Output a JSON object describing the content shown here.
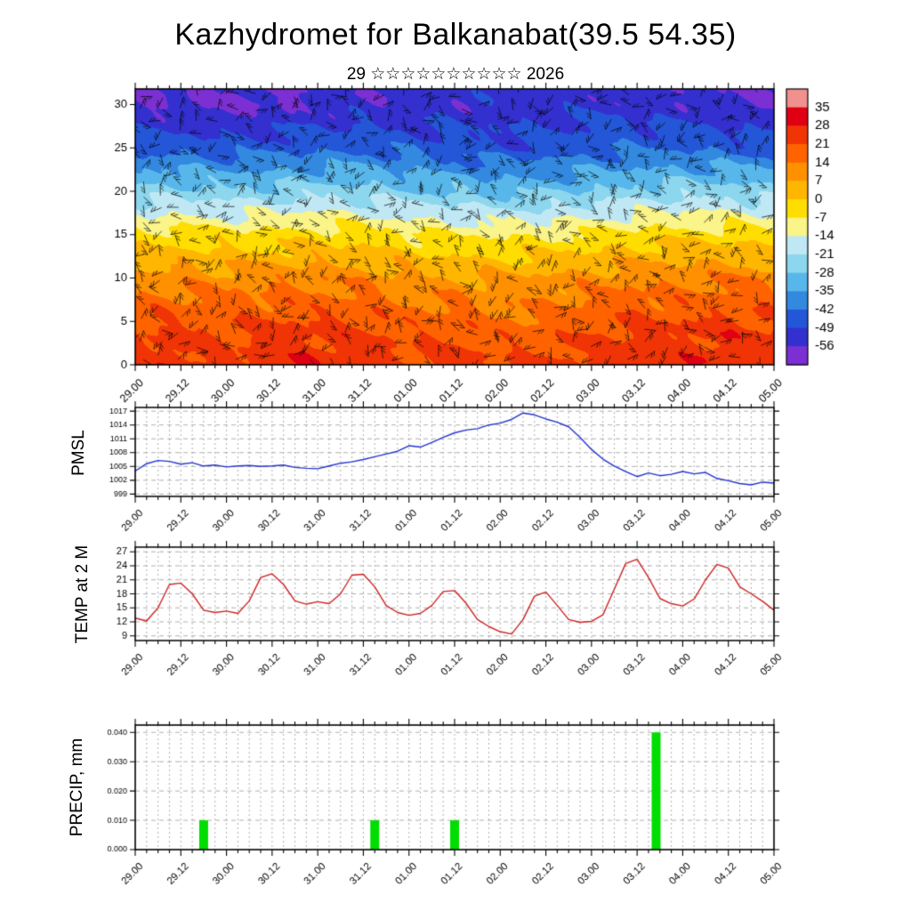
{
  "header": {
    "title": "Kazhydromet for Balkanabat(39.5 54.35)",
    "subtitle": "29 ☆☆☆☆☆☆☆☆☆☆ 2026"
  },
  "x_axis": {
    "tick_labels": [
      "29.00",
      "29.12",
      "30.00",
      "30.12",
      "31.00",
      "31.12",
      "01.00",
      "01.12",
      "02.00",
      "02.12",
      "03.00",
      "03.12",
      "04.00",
      "04.12",
      "05.00"
    ],
    "hours_span": 168,
    "minor_step_hours": 3,
    "major_step_hours": 12
  },
  "chart_data": [
    {
      "type": "heatmap",
      "name": "upper-air temperature time-height section with wind barbs",
      "overlay": "wind-barbs",
      "y_ticks": [
        0,
        5,
        10,
        15,
        20,
        25,
        30
      ],
      "y_max": 31.8,
      "time_step_hours": 12,
      "levels": [
        0,
        5,
        10,
        15,
        20,
        25,
        30
      ],
      "values_by_time": [
        [
          24,
          20,
          10,
          -5,
          -26,
          -45,
          -56
        ],
        [
          26,
          21,
          11,
          -4,
          -25,
          -44,
          -56
        ],
        [
          22,
          19,
          10,
          -5,
          -26,
          -46,
          -57
        ],
        [
          25,
          21,
          12,
          -4,
          -25,
          -45,
          -57
        ],
        [
          26,
          22,
          12,
          -3,
          -24,
          -44,
          -55
        ],
        [
          25,
          21,
          11,
          -4,
          -25,
          -43,
          -54
        ],
        [
          22,
          18,
          9,
          -6,
          -27,
          -45,
          -54
        ],
        [
          23,
          18,
          8,
          -7,
          -28,
          -46,
          -53
        ],
        [
          21,
          16,
          7,
          -8,
          -30,
          -47,
          -52
        ],
        [
          22,
          17,
          8,
          -8,
          -29,
          -46,
          -52
        ],
        [
          24,
          19,
          10,
          -6,
          -27,
          -44,
          -52
        ],
        [
          27,
          22,
          12,
          -4,
          -25,
          -43,
          -53
        ],
        [
          25,
          21,
          12,
          -3,
          -24,
          -43,
          -54
        ],
        [
          27,
          23,
          13,
          -3,
          -24,
          -44,
          -55
        ],
        [
          24,
          21,
          12,
          -4,
          -25,
          -45,
          -56
        ]
      ],
      "colorbar_ticks": [
        35,
        28,
        21,
        14,
        7,
        0,
        -7,
        -14,
        -21,
        -28,
        -35,
        -42,
        -49,
        -56
      ],
      "colorbar_colors": [
        "#f0908f",
        "#e00013",
        "#f03406",
        "#fe6300",
        "#ff9000",
        "#ffb600",
        "#ffdd00",
        "#faf489",
        "#bfe8f4",
        "#8cd6ee",
        "#58b7ea",
        "#3388e0",
        "#2456d8",
        "#3330cf",
        "#7c2fd2"
      ]
    },
    {
      "type": "line",
      "name": "PMSL",
      "color": "#2233cc",
      "y_ticks": [
        999,
        1002,
        1005,
        1008,
        1011,
        1014,
        1017
      ],
      "ylim": [
        998.5,
        1017.8
      ],
      "step_hours": 3,
      "values": [
        1004.0,
        1005.6,
        1006.3,
        1006.1,
        1005.5,
        1005.8,
        1005.1,
        1005.3,
        1004.9,
        1005.1,
        1005.2,
        1005.0,
        1005.1,
        1005.3,
        1004.8,
        1004.6,
        1004.5,
        1005.1,
        1005.7,
        1006.0,
        1006.5,
        1007.1,
        1007.7,
        1008.3,
        1009.5,
        1009.2,
        1010.2,
        1011.3,
        1012.3,
        1012.9,
        1013.2,
        1014.0,
        1014.4,
        1015.2,
        1016.6,
        1016.2,
        1015.3,
        1014.6,
        1013.6,
        1011.3,
        1008.7,
        1006.6,
        1005.1,
        1003.9,
        1002.8,
        1003.6,
        1003.0,
        1003.3,
        1003.9,
        1003.4,
        1003.7,
        1002.4,
        1001.9,
        1001.3,
        1001.0,
        1001.6,
        1001.4
      ]
    },
    {
      "type": "line",
      "name": "TEMP at 2 M",
      "color": "#cc2222",
      "y_ticks": [
        9,
        12,
        15,
        18,
        21,
        24,
        27
      ],
      "ylim": [
        8,
        28
      ],
      "step_hours": 3,
      "values": [
        12.8,
        12.2,
        15.0,
        20.0,
        20.3,
        18.0,
        14.5,
        14.0,
        14.3,
        13.8,
        16.5,
        21.5,
        22.3,
        20.0,
        16.5,
        15.8,
        16.3,
        15.9,
        18.0,
        22.0,
        22.2,
        19.5,
        15.5,
        14.0,
        13.4,
        13.8,
        15.5,
        18.5,
        18.7,
        16.0,
        12.5,
        11.0,
        9.9,
        9.4,
        12.5,
        17.5,
        18.4,
        15.5,
        12.5,
        11.9,
        12.1,
        13.5,
        19.0,
        24.5,
        25.4,
        21.5,
        17.0,
        15.9,
        15.4,
        16.9,
        21.0,
        24.3,
        23.5,
        19.5,
        18.0,
        16.4,
        14.5
      ]
    },
    {
      "type": "bar",
      "name": "PRECIP, mm",
      "color": "#00dd00",
      "y_tick_labels": [
        "0.000",
        "0.010",
        "0.020",
        "0.030",
        "0.040"
      ],
      "ylim": [
        0,
        0.0425
      ],
      "bars": [
        {
          "time": "29.18",
          "hour": 18,
          "value": 0.01
        },
        {
          "time": "31.15",
          "hour": 63,
          "value": 0.01
        },
        {
          "time": "01.12",
          "hour": 84,
          "value": 0.01
        },
        {
          "time": "03.17",
          "hour": 137,
          "value": 0.04
        }
      ]
    }
  ]
}
